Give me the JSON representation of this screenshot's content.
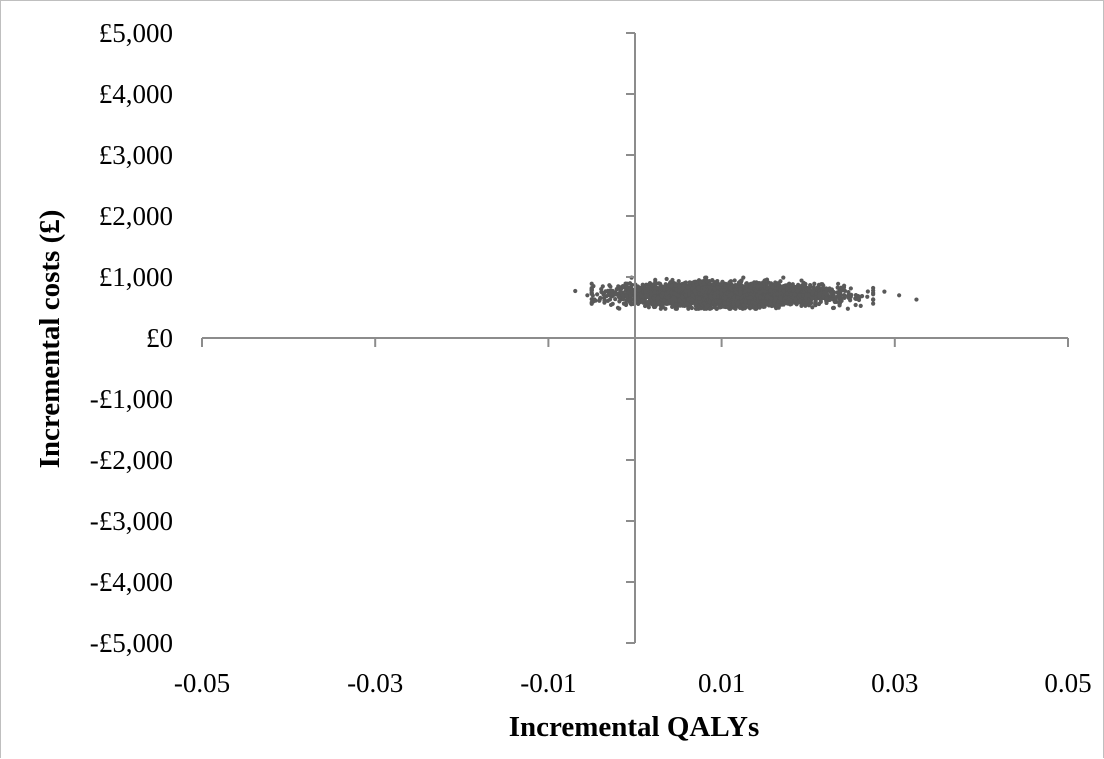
{
  "chart_data": {
    "type": "scatter",
    "title": "",
    "xlabel": "Incremental QALYs",
    "ylabel": "Incremental costs (£)",
    "xlim": [
      -0.05,
      0.05
    ],
    "ylim": [
      -5000,
      5000
    ],
    "x_ticks": [
      -0.05,
      -0.03,
      -0.01,
      0.01,
      0.03,
      0.05
    ],
    "x_tick_labels": [
      "-0.05",
      "-0.03",
      "-0.01",
      "0.01",
      "0.03",
      "0.05"
    ],
    "y_ticks": [
      5000,
      4000,
      3000,
      2000,
      1000,
      0,
      -1000,
      -2000,
      -3000,
      -4000,
      -5000
    ],
    "y_tick_labels": [
      "£5,000",
      "£4,000",
      "£3,000",
      "£2,000",
      "£1,000",
      "£0",
      "-£1,000",
      "-£2,000",
      "-£3,000",
      "-£4,000",
      "-£5,000"
    ],
    "grid": false,
    "legend": "none",
    "marker_color": "#595959",
    "axis_color": "#8c8c8c",
    "cloud": {
      "x_mean": 0.0105,
      "x_sd": 0.0055,
      "x_min": -0.007,
      "x_max": 0.033,
      "y_mean": 710,
      "y_sd": 85,
      "y_min": 480,
      "y_max": 990,
      "n_points": 5000
    },
    "outliers": [
      {
        "x": -0.0069,
        "y": 770
      },
      {
        "x": -0.0055,
        "y": 700
      },
      {
        "x": -0.0048,
        "y": 850
      },
      {
        "x": -0.0035,
        "y": 680
      },
      {
        "x": 0.0275,
        "y": 820
      },
      {
        "x": 0.0288,
        "y": 760
      },
      {
        "x": 0.0305,
        "y": 700
      },
      {
        "x": 0.0325,
        "y": 630
      }
    ]
  }
}
